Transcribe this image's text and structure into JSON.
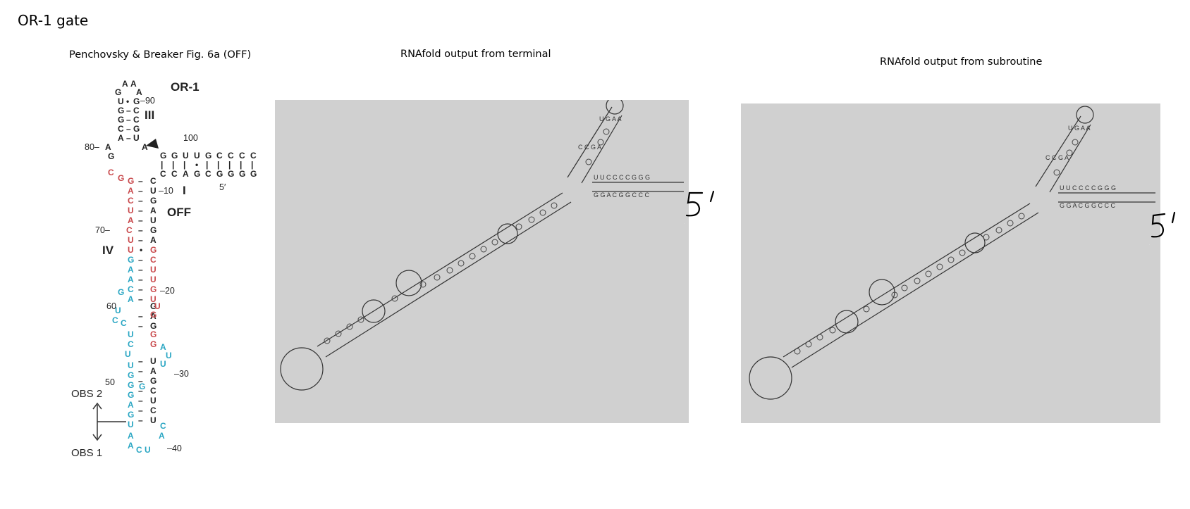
{
  "page": {
    "title": "OR-1 gate"
  },
  "captions": {
    "fig": "Penchovsky & Breaker Fig. 6a (OFF)",
    "terminal": "RNAfold output from terminal",
    "subroutine": "RNAfold output from subroutine"
  },
  "figure": {
    "gate_label": "OR-1",
    "state_label": "OFF",
    "stems": {
      "I": "I",
      "III": "III",
      "IV": "IV"
    },
    "numbers": {
      "n10": "–10",
      "n20": "–20",
      "n30": "–30",
      "n40": "–40",
      "n50": "50",
      "n60": "60",
      "n70": "70–",
      "n80": "80–",
      "n90": "–90",
      "n100": "100",
      "five_prime": "5′"
    },
    "obs1": "OBS 1",
    "obs2": "OBS 2",
    "colors": {
      "red": "#c8474a",
      "cyan": "#2aa6c3",
      "black": "#222222"
    }
  },
  "annotations": {
    "terminal_5prime": "5'",
    "subroutine_5prime": "5'"
  }
}
